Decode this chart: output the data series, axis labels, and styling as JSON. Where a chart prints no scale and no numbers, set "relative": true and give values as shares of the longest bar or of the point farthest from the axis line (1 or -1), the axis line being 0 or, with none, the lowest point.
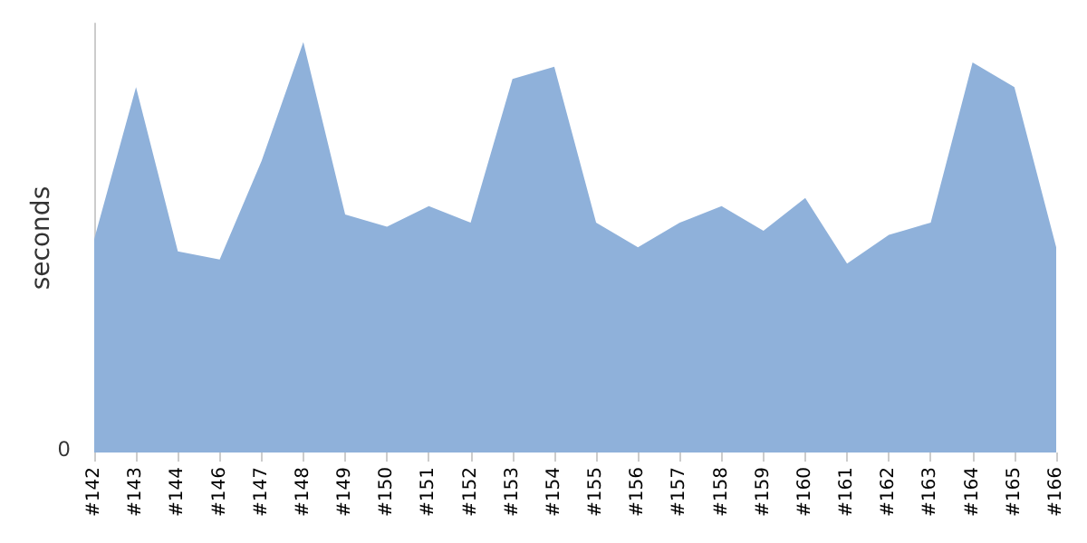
{
  "chart_data": {
    "type": "area",
    "ylabel": "seconds",
    "relative": true,
    "annotations": [
      "0"
    ],
    "categories": [
      "#142",
      "#143",
      "#144",
      "#146",
      "#147",
      "#148",
      "#149",
      "#150",
      "#151",
      "#152",
      "#153",
      "#154",
      "#155",
      "#156",
      "#157",
      "#158",
      "#159",
      "#160",
      "#161",
      "#162",
      "#163",
      "#164",
      "#165",
      "#166"
    ],
    "series": [
      {
        "color": "#8fb1da",
        "values": [
          0.52,
          0.89,
          0.49,
          0.47,
          0.71,
          1,
          0.58,
          0.55,
          0.6,
          0.56,
          0.91,
          0.94,
          0.56,
          0.5,
          0.56,
          0.6,
          0.54,
          0.62,
          0.46,
          0.53,
          0.56,
          0.95,
          0.89,
          0.5
        ]
      }
    ]
  }
}
